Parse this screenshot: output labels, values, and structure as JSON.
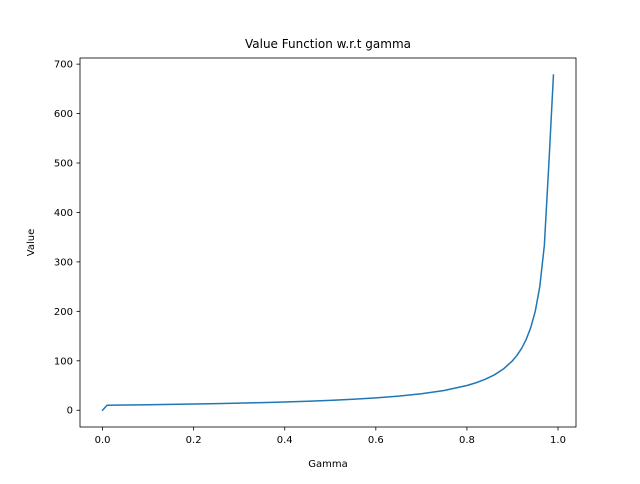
{
  "chart_data": {
    "type": "line",
    "title": "Value Function w.r.t gamma",
    "xlabel": "Gamma",
    "ylabel": "Value",
    "xlim": [
      -0.0495,
      1.0395
    ],
    "ylim": [
      -33.9,
      712.4
    ],
    "xticks": [
      0.0,
      0.2,
      0.4,
      0.6,
      0.8,
      1.0
    ],
    "xtick_labels": [
      "0.0",
      "0.2",
      "0.4",
      "0.6",
      "0.8",
      "1.0"
    ],
    "yticks": [
      0,
      100,
      200,
      300,
      400,
      500,
      600,
      700
    ],
    "ytick_labels": [
      "0",
      "100",
      "200",
      "300",
      "400",
      "500",
      "600",
      "700"
    ],
    "grid": false,
    "line_color": "#1f77b4",
    "series": [
      {
        "x": [
          0.0,
          0.01,
          0.05,
          0.1,
          0.15,
          0.2,
          0.25,
          0.3,
          0.35,
          0.4,
          0.45,
          0.5,
          0.55,
          0.6,
          0.65,
          0.7,
          0.75,
          0.8,
          0.82,
          0.84,
          0.86,
          0.88,
          0.9,
          0.91,
          0.92,
          0.93,
          0.94,
          0.95,
          0.96,
          0.97,
          0.98,
          0.99
        ],
        "values": [
          0.0,
          10.0,
          10.5,
          11.1,
          11.8,
          12.5,
          13.3,
          14.3,
          15.4,
          16.7,
          18.2,
          20.0,
          22.2,
          25.0,
          28.6,
          33.3,
          40.0,
          50.0,
          55.6,
          62.5,
          71.4,
          83.3,
          100.0,
          111.1,
          125.0,
          142.9,
          166.7,
          200.0,
          250.0,
          333.3,
          500.0,
          678.0
        ]
      }
    ]
  }
}
